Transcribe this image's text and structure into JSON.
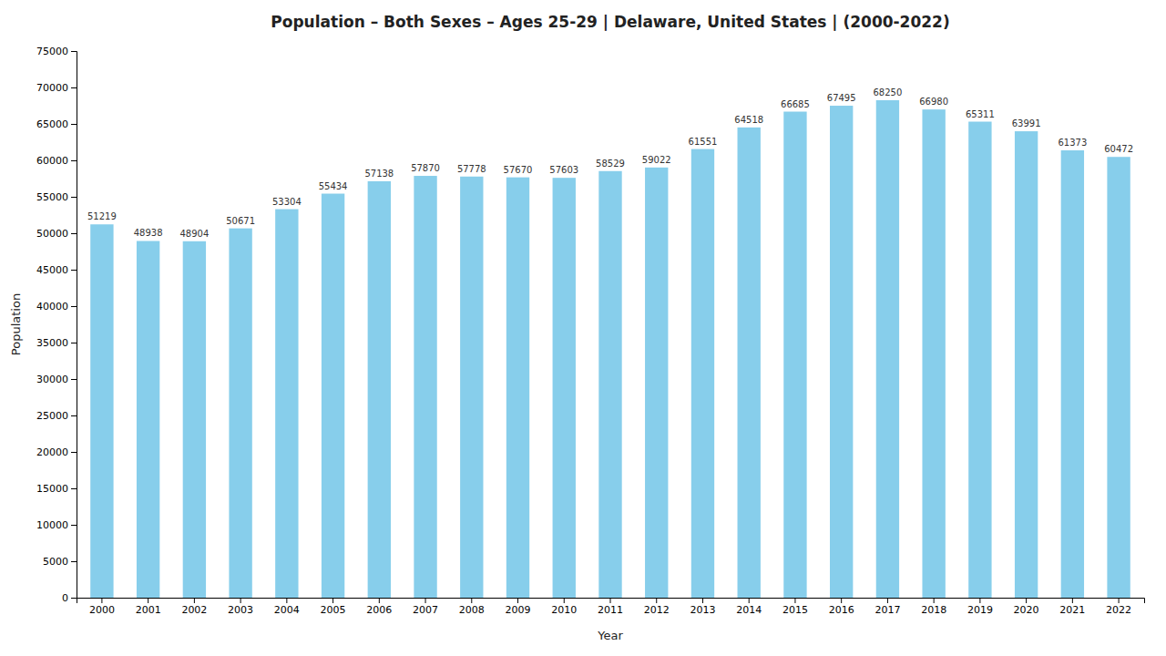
{
  "chart_data": {
    "type": "bar",
    "title": "Population – Both Sexes – Ages 25-29 | Delaware, United States |   (2000-2022)",
    "x_label": "Year",
    "y_label": "Population",
    "categories": [
      "2000",
      "2001",
      "2002",
      "2003",
      "2004",
      "2005",
      "2006",
      "2007",
      "2008",
      "2009",
      "2010",
      "2011",
      "2012",
      "2013",
      "2014",
      "2015",
      "2016",
      "2017",
      "2018",
      "2019",
      "2020",
      "2021",
      "2022"
    ],
    "values": [
      51219,
      48938,
      48904,
      50671,
      53304,
      55434,
      57138,
      57870,
      57778,
      57670,
      57603,
      58529,
      59022,
      61551,
      64518,
      66685,
      67495,
      68250,
      66980,
      65311,
      63991,
      61373,
      60472
    ],
    "color": "#87CEEB",
    "ylim": [
      0,
      75000
    ],
    "yticks": [
      0,
      5000,
      10000,
      15000,
      20000,
      25000,
      30000,
      35000,
      40000,
      45000,
      50000,
      55000,
      60000,
      65000,
      70000,
      75000
    ],
    "grid": false,
    "data_labels": true
  }
}
